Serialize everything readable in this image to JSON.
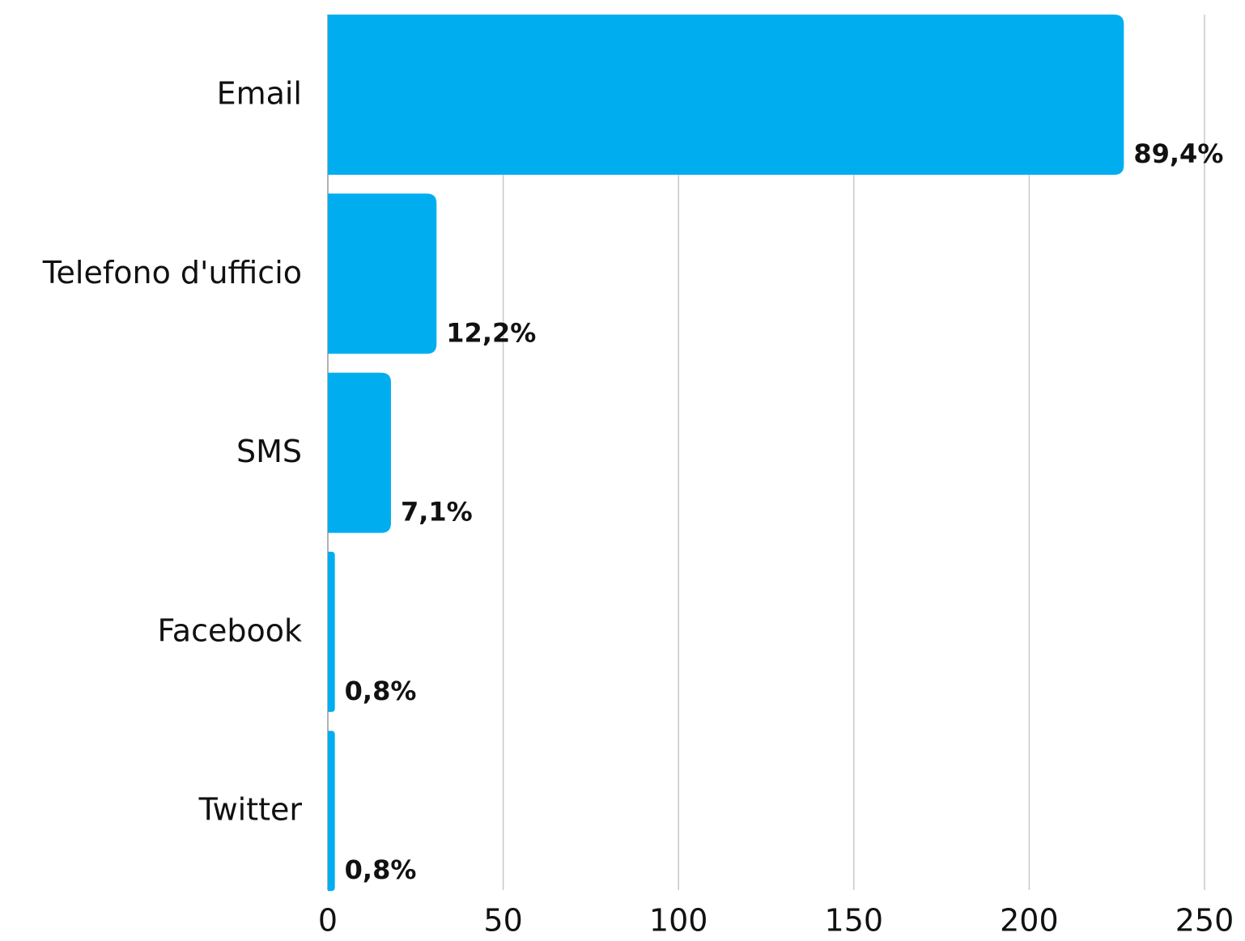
{
  "chart_data": {
    "type": "barh",
    "categories": [
      "Email",
      "Telefono d'ufficio",
      "SMS",
      "Facebook",
      "Twitter"
    ],
    "values": [
      227,
      31,
      18,
      2,
      2
    ],
    "data_labels": [
      "89,4%",
      "12,2%",
      "7,1%",
      "0,8%",
      "0,8%"
    ],
    "color": "#00aeef",
    "xlim": [
      0,
      250
    ],
    "xticks": [
      0,
      50,
      100,
      150,
      200,
      250
    ],
    "grid": true
  }
}
